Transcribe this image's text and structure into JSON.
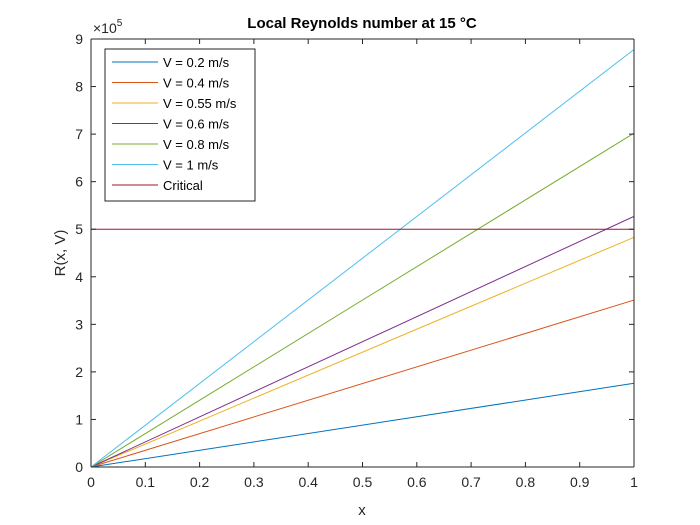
{
  "chart_data": {
    "type": "line",
    "title": "Local Reynolds number at 15 °C",
    "xlabel": "x",
    "ylabel": "R(x, V)",
    "xlim": [
      0,
      1
    ],
    "ylim": [
      0,
      9
    ],
    "y_exponent_prefix": "×10",
    "y_exponent": "5",
    "x_ticks": [
      "0",
      "0.1",
      "0.2",
      "0.3",
      "0.4",
      "0.5",
      "0.6",
      "0.7",
      "0.8",
      "0.9",
      "1"
    ],
    "y_ticks": [
      "0",
      "1",
      "2",
      "3",
      "4",
      "5",
      "6",
      "7",
      "8",
      "9"
    ],
    "legend_position": "top-left",
    "series": [
      {
        "name": "V = 0.2 m/s",
        "color": "#0072BD",
        "x": [
          0,
          1
        ],
        "y": [
          0,
          1.76
        ]
      },
      {
        "name": "V = 0.4 m/s",
        "color": "#D95319",
        "x": [
          0,
          1
        ],
        "y": [
          0,
          3.51
        ]
      },
      {
        "name": "V = 0.55 m/s",
        "color": "#EDB120",
        "x": [
          0,
          1
        ],
        "y": [
          0,
          4.83
        ]
      },
      {
        "name": "V = 0.6 m/s",
        "color": "#7E2F8E",
        "x": [
          0,
          1
        ],
        "y": [
          0,
          5.27
        ]
      },
      {
        "name": "V = 0.8 m/s",
        "color": "#77AC30",
        "x": [
          0,
          1
        ],
        "y": [
          0,
          7.02
        ]
      },
      {
        "name": "V = 1 m/s",
        "color": "#4DBEEE",
        "x": [
          0,
          1
        ],
        "y": [
          0,
          8.78
        ]
      },
      {
        "name": "Critical",
        "color": "#A2142F",
        "x": [
          0,
          1
        ],
        "y": [
          5,
          5
        ]
      }
    ]
  }
}
